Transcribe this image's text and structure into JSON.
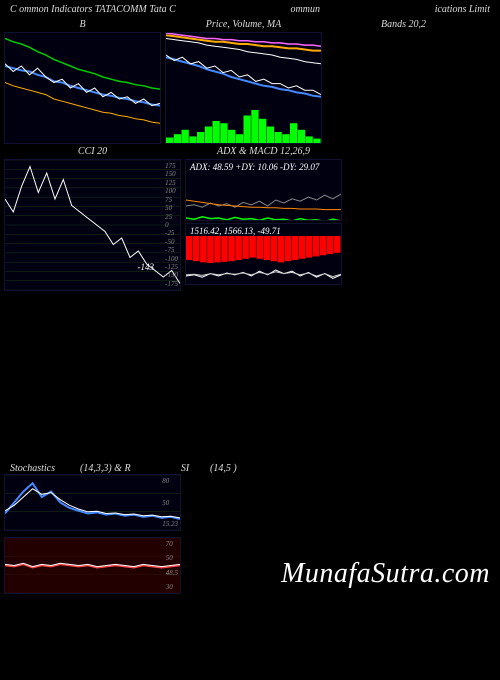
{
  "header": {
    "left": "C        ommon  Indicators TATACOMM Tata  C",
    "mid": "ommun",
    "right": "ications Limit"
  },
  "watermark": "MunafaSutra.com",
  "panels": {
    "bb": {
      "title": "B",
      "width": 155,
      "height": 110,
      "bg": "#000011",
      "series": [
        {
          "color": "#00cc00",
          "width": 1.5,
          "points": [
            95,
            92,
            90,
            87,
            83,
            80,
            76,
            73,
            70,
            67,
            65,
            63,
            60,
            58,
            56,
            55,
            53,
            52,
            50,
            49
          ]
        },
        {
          "color": "#4488ff",
          "width": 2,
          "points": [
            70,
            68,
            66,
            65,
            62,
            60,
            56,
            55,
            52,
            50,
            48,
            46,
            44,
            43,
            41,
            40,
            38,
            37,
            35,
            34
          ]
        },
        {
          "color": "#ffaa00",
          "width": 1,
          "points": [
            55,
            52,
            50,
            48,
            46,
            44,
            40,
            38,
            36,
            34,
            32,
            30,
            28,
            27,
            25,
            24,
            22,
            21,
            19,
            18
          ]
        },
        {
          "color": "#ffffff",
          "width": 1,
          "points": [
            72,
            65,
            70,
            62,
            68,
            60,
            55,
            58,
            50,
            54,
            46,
            50,
            42,
            46,
            40,
            42,
            36,
            40,
            34,
            36
          ]
        }
      ]
    },
    "price": {
      "title": "Price,  Volume,  MA",
      "width": 155,
      "height": 110,
      "bg": "#000011",
      "series": [
        {
          "color": "#ff66ff",
          "width": 1.5,
          "points": [
            100,
            99,
            98,
            97,
            96,
            95,
            95,
            94,
            94,
            93,
            93,
            92,
            92,
            91,
            91,
            90,
            90,
            89,
            89,
            88
          ]
        },
        {
          "color": "#ffaa00",
          "width": 2,
          "points": [
            98,
            97,
            96,
            95,
            94,
            93,
            92,
            92,
            91,
            90,
            90,
            89,
            88,
            88,
            87,
            86,
            86,
            85,
            84,
            84
          ]
        },
        {
          "color": "#ffffff",
          "width": 1,
          "points": [
            95,
            94,
            93,
            92,
            91,
            89,
            88,
            87,
            86,
            85,
            83,
            82,
            81,
            80,
            78,
            77,
            76,
            74,
            73,
            72
          ]
        },
        {
          "color": "#4488ff",
          "width": 2,
          "points": [
            78,
            76,
            74,
            72,
            70,
            67,
            65,
            63,
            60,
            58,
            56,
            54,
            52,
            51,
            49,
            48,
            46,
            45,
            43,
            42
          ]
        },
        {
          "color": "#ffffff",
          "width": 1,
          "points": [
            80,
            75,
            78,
            72,
            74,
            68,
            70,
            64,
            66,
            60,
            62,
            56,
            58,
            54,
            54,
            50,
            52,
            48,
            48,
            44
          ]
        }
      ],
      "volume": {
        "color": "#00ff00",
        "bars": [
          5,
          8,
          12,
          6,
          10,
          15,
          20,
          18,
          12,
          8,
          25,
          30,
          22,
          15,
          10,
          8,
          18,
          12,
          6,
          4
        ]
      }
    },
    "bands": {
      "title": "Bands 20,2",
      "width": 155,
      "height": 110
    },
    "cci": {
      "title": "CCI 20",
      "width": 175,
      "height": 130,
      "bg": "#000011",
      "grid_color": "#1a3a1a",
      "y_labels": [
        "175",
        "150",
        "125",
        "100",
        "75",
        "50",
        "25",
        "0",
        "-25",
        "-50",
        "-75",
        "-100",
        "-125",
        "-150",
        "-175"
      ],
      "value_label": "-143",
      "series": [
        {
          "color": "#ffffff",
          "width": 1,
          "points": [
            70,
            60,
            80,
            95,
            75,
            90,
            70,
            85,
            65,
            60,
            55,
            50,
            45,
            35,
            40,
            25,
            30,
            20,
            15,
            10,
            15,
            5
          ]
        }
      ]
    },
    "adx": {
      "title": "ADX    & MACD 12,26,9",
      "inner_label": "ADX: 48.59 +DY: 10.06   -DY: 29.07",
      "width": 155,
      "height": 60,
      "bg": "#000011",
      "series": [
        {
          "color": "#888888",
          "width": 1,
          "points": [
            40,
            42,
            38,
            45,
            40,
            44,
            38,
            46,
            42,
            48,
            40,
            50,
            45,
            52,
            48,
            55,
            50,
            58,
            52,
            60
          ]
        },
        {
          "color": "#ff8800",
          "width": 1,
          "points": [
            50,
            48,
            46,
            44,
            42,
            41,
            40,
            39,
            38,
            38,
            37,
            37,
            36,
            36,
            35,
            35,
            35,
            34,
            34,
            34
          ]
        },
        {
          "color": "#00ff00",
          "width": 1.5,
          "points": [
            20,
            18,
            22,
            19,
            20,
            17,
            21,
            18,
            19,
            16,
            20,
            17,
            18,
            15,
            19,
            16,
            17,
            14,
            18,
            15
          ]
        }
      ]
    },
    "macd": {
      "inner_label": "1516.42,  1566.13,  -49.71",
      "width": 155,
      "height": 60,
      "bg": "#000011",
      "hist": {
        "color": "#ff0000",
        "bars": [
          40,
          42,
          44,
          45,
          44,
          43,
          42,
          40,
          38,
          36,
          38,
          40,
          42,
          44,
          42,
          40,
          38,
          36,
          34,
          32,
          30,
          28
        ]
      },
      "series": [
        {
          "color": "#ffffff",
          "width": 1,
          "points": [
            30,
            32,
            28,
            34,
            30,
            35,
            32,
            36,
            30,
            38,
            32,
            40,
            34,
            38,
            30,
            36,
            28,
            34,
            26,
            32
          ]
        },
        {
          "color": "#cccccc",
          "width": 1,
          "points": [
            32,
            33,
            31,
            34,
            32,
            34,
            33,
            35,
            32,
            36,
            33,
            37,
            34,
            36,
            32,
            35,
            30,
            34,
            29,
            33
          ]
        }
      ]
    },
    "stoch": {
      "title_left": "Stochastics",
      "title_mid": "(14,3,3) & R",
      "title_mid2": "SI",
      "title_right": "(14,5                            )",
      "width": 175,
      "height": 55,
      "bg": "#000011",
      "y_labels": [
        "80",
        "50",
        "15.23"
      ],
      "series": [
        {
          "color": "#4488ff",
          "width": 2,
          "points": [
            30,
            50,
            70,
            85,
            60,
            70,
            50,
            40,
            35,
            30,
            32,
            28,
            30,
            26,
            28,
            24,
            26,
            22,
            24,
            20
          ]
        },
        {
          "color": "#ffffff",
          "width": 1,
          "points": [
            35,
            45,
            60,
            75,
            65,
            68,
            55,
            45,
            38,
            33,
            34,
            30,
            31,
            28,
            29,
            26,
            27,
            24,
            25,
            22
          ]
        }
      ]
    },
    "rsi": {
      "width": 175,
      "height": 55,
      "bg": "#220000",
      "y_labels": [
        "70",
        "50",
        "48.5",
        "30"
      ],
      "series": [
        {
          "color": "#ff4444",
          "width": 1.5,
          "points": [
            50,
            48,
            52,
            46,
            50,
            48,
            52,
            50,
            48,
            50,
            46,
            48,
            50,
            48,
            46,
            50,
            48,
            46,
            48,
            50
          ]
        },
        {
          "color": "#ffffff",
          "width": 1,
          "points": [
            52,
            50,
            54,
            48,
            52,
            50,
            54,
            52,
            50,
            52,
            48,
            50,
            52,
            50,
            48,
            52,
            50,
            48,
            50,
            52
          ]
        }
      ]
    }
  }
}
